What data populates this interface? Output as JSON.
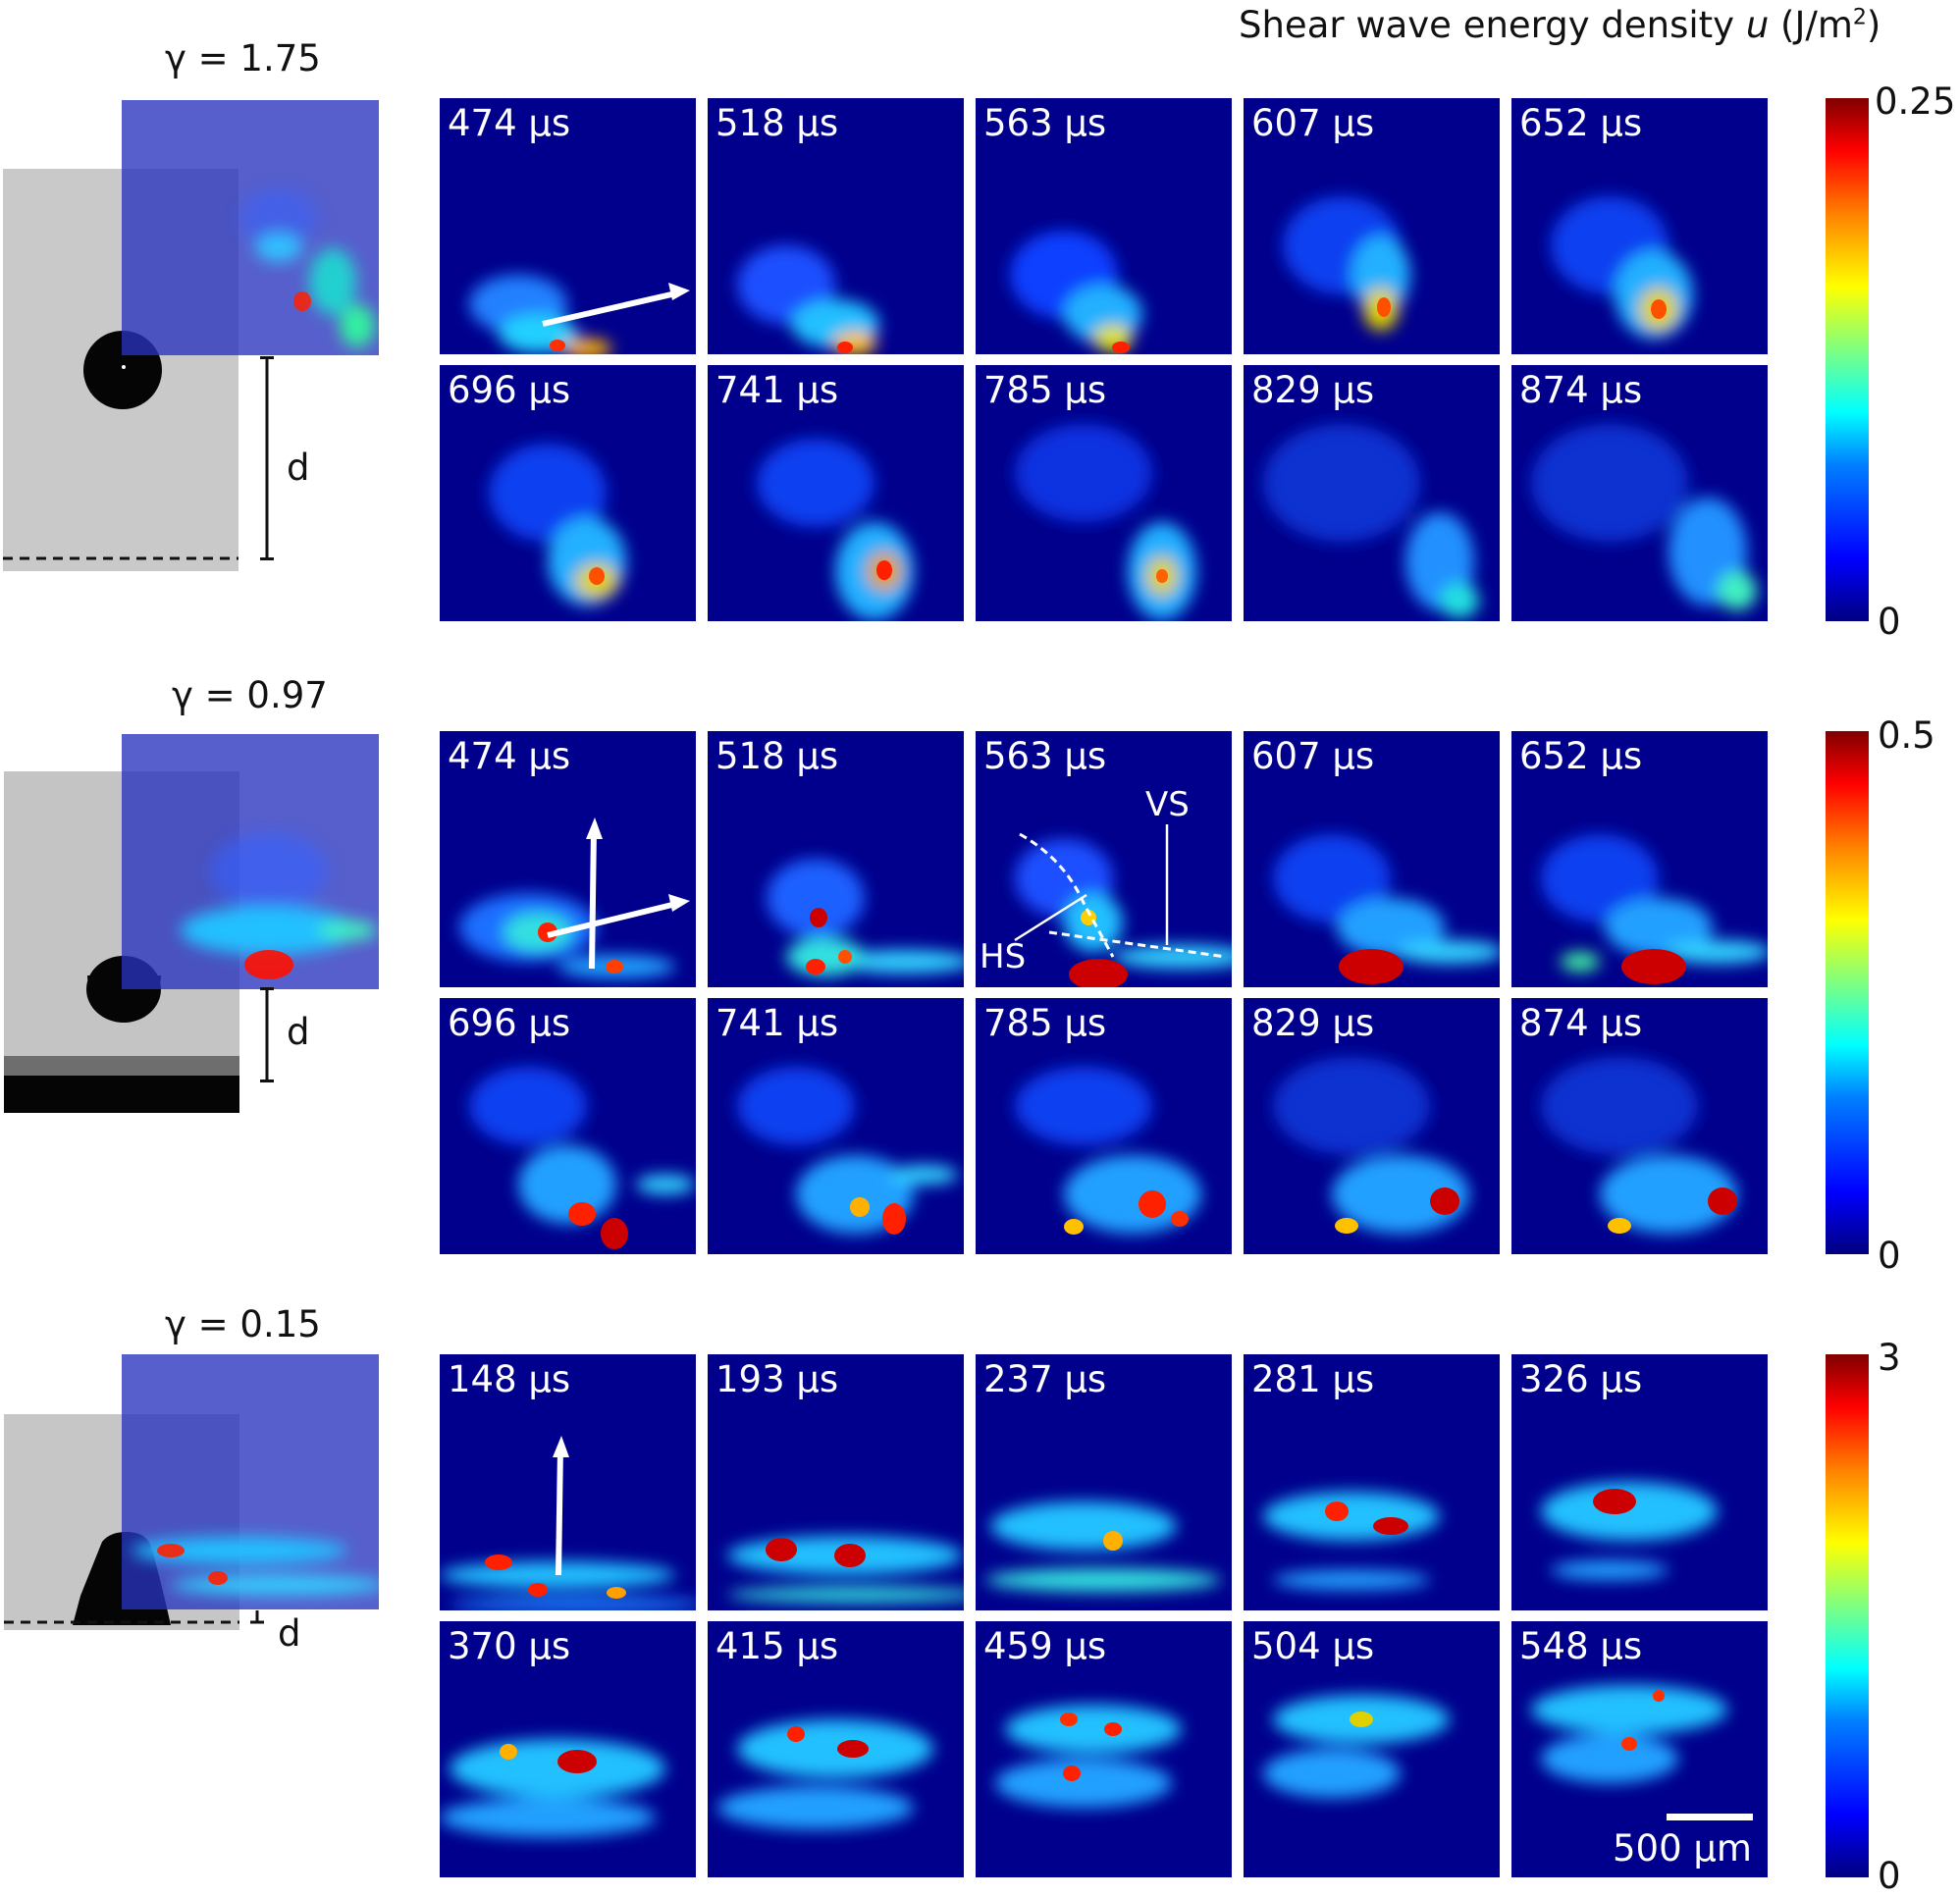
{
  "header": {
    "prefix": "Shear wave energy density ",
    "symbol": "u",
    "unit_prefix": " (J/m",
    "unit_exp": "2",
    "unit_suffix": ")"
  },
  "rows": [
    {
      "gamma": "γ = 1.75",
      "d_label": "d",
      "colorbar": {
        "max": "0.25",
        "min": "0"
      },
      "times": [
        "474 µs",
        "518 µs",
        "563 µs",
        "607 µs",
        "652 µs",
        "696 µs",
        "741 µs",
        "785 µs",
        "829 µs",
        "874 µs"
      ]
    },
    {
      "gamma": "γ = 0.97",
      "d_label": "d",
      "colorbar": {
        "max": "0.5",
        "min": "0"
      },
      "times": [
        "474 µs",
        "518 µs",
        "563 µs",
        "607 µs",
        "652 µs",
        "696 µs",
        "741 µs",
        "785 µs",
        "829 µs",
        "874 µs"
      ],
      "annotations": {
        "vs": "VS",
        "hs": "HS"
      }
    },
    {
      "gamma": "γ = 0.15",
      "d_label": "d",
      "colorbar": {
        "max": "3",
        "min": "0"
      },
      "times": [
        "148 µs",
        "193 µs",
        "237 µs",
        "281 µs",
        "326 µs",
        "370 µs",
        "415 µs",
        "459 µs",
        "504 µs",
        "548 µs"
      ],
      "scalebar": "500 µm"
    }
  ],
  "colormap": "jet"
}
